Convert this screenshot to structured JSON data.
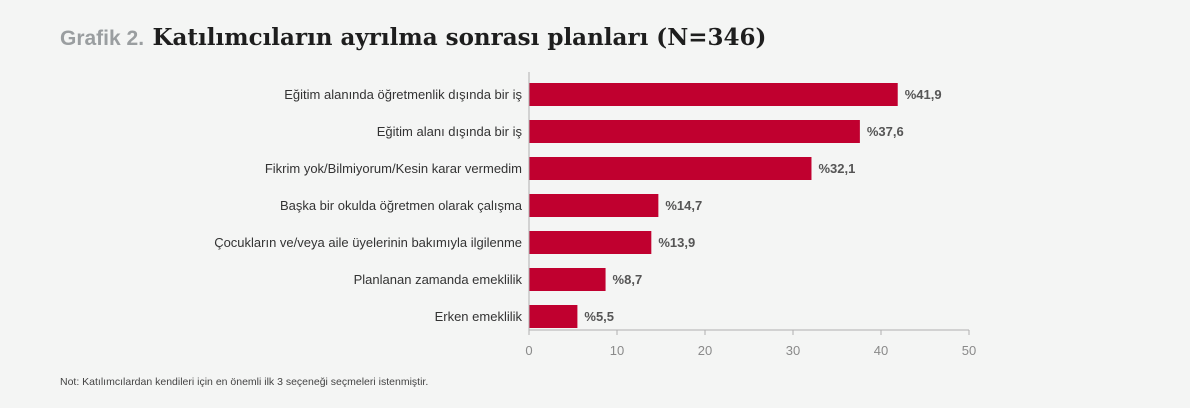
{
  "header": {
    "figure_label": "Grafik 2.",
    "title": "Katılımcıların ayrılma sonrası planları (N=346)"
  },
  "note": "Not: Katılımcılardan kendileri için en önemli ilk 3 seçeneği seçmeleri istenmiştir.",
  "colors": {
    "bar": "#c0002f",
    "axis": "#b0b0b0",
    "label": "#333333",
    "value": "#555555",
    "tick": "#8a8a8a"
  },
  "chart_data": {
    "type": "bar",
    "orientation": "horizontal",
    "title": "Katılımcıların ayrılma sonrası planları (N=346)",
    "xlabel": "",
    "ylabel": "",
    "xlim": [
      0,
      50
    ],
    "xticks": [
      0,
      10,
      20,
      30,
      40,
      50
    ],
    "grid": false,
    "categories": [
      "Eğitim alanında öğretmenlik dışında bir iş",
      "Eğitim alanı dışında bir iş",
      "Fikrim yok/Bilmiyorum/Kesin karar vermedim",
      "Başka bir okulda öğretmen olarak çalışma",
      "Çocukların ve/veya aile üyelerinin bakımıyla ilgilenme",
      "Planlanan zamanda emeklilik",
      "Erken emeklilik"
    ],
    "values": [
      41.9,
      37.6,
      32.1,
      14.7,
      13.9,
      8.7,
      5.5
    ],
    "value_labels": [
      "%41,9",
      "%37,6",
      "%32,1",
      "%14,7",
      "%13,9",
      "%8,7",
      "%5,5"
    ]
  }
}
